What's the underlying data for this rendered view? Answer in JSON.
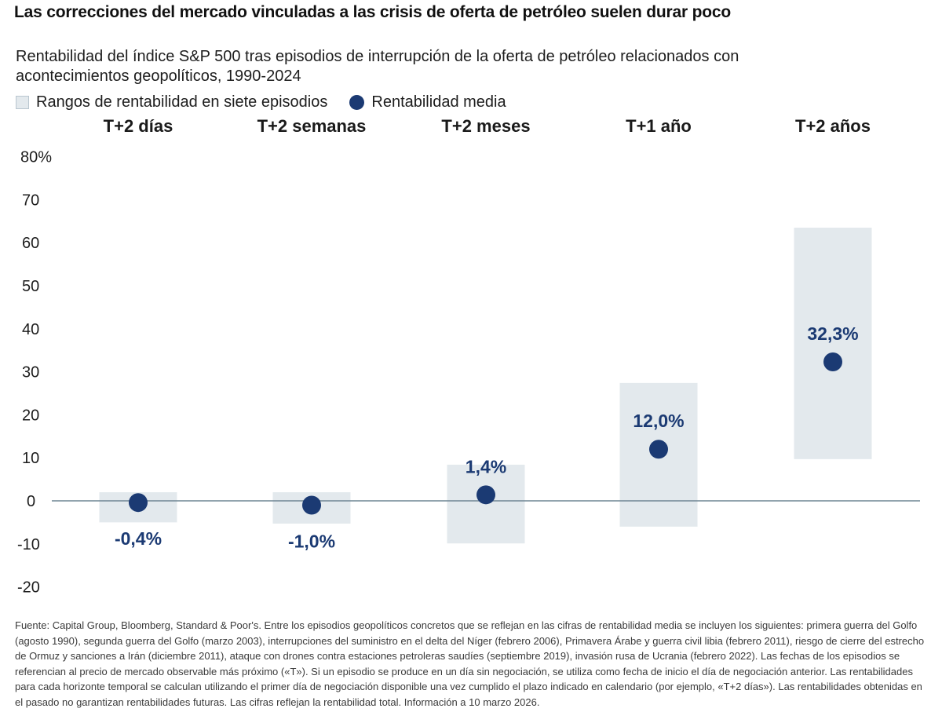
{
  "title": "Las correcciones del mercado vinculadas a las crisis de oferta de petróleo suelen durar poco",
  "subtitle": "Rentabilidad del índice S&P 500 tras episodios de interrupción de la oferta de petróleo relacionados con acontecimientos geopolíticos, 1990-2024",
  "legend": {
    "range_label": "Rangos de rentabilidad en siete episodios",
    "mean_label": "Rentabilidad media"
  },
  "colors": {
    "range_fill": "#e3e9ed",
    "mean_dot": "#1b3a73",
    "zero_line": "#6f8593"
  },
  "chart_data": {
    "type": "range-dot",
    "title": "Rentabilidad del índice S&P 500 tras episodios de interrupción de la oferta de petróleo relacionados con acontecimientos geopolíticos, 1990-2024",
    "xlabel": "",
    "ylabel": "",
    "ylim": [
      -20,
      80
    ],
    "yticks": [
      80,
      70,
      60,
      50,
      40,
      30,
      20,
      10,
      0,
      -10,
      -20
    ],
    "ytick_labels": [
      "80%",
      "70",
      "60",
      "50",
      "40",
      "30",
      "20",
      "10",
      "0",
      "-10",
      "-20"
    ],
    "grid": false,
    "legend_position": "top-left",
    "categories": [
      "T+2 días",
      "T+2 semanas",
      "T+2 meses",
      "T+1 año",
      "T+2 años"
    ],
    "series": [
      {
        "name": "Rangos de rentabilidad en siete episodios",
        "kind": "range",
        "low": [
          -5.0,
          -5.3,
          -9.9,
          -6.0,
          9.7
        ],
        "high": [
          2.0,
          2.0,
          8.4,
          27.4,
          63.5
        ]
      },
      {
        "name": "Rentabilidad media",
        "kind": "dot",
        "values": [
          -0.4,
          -1.0,
          1.4,
          12.0,
          32.3
        ],
        "labels": [
          "-0,4%",
          "-1,0%",
          "1,4%",
          "12,0%",
          "32,3%"
        ],
        "label_position": [
          "below",
          "below",
          "above",
          "above",
          "above"
        ]
      }
    ]
  },
  "footnote": "Fuente: Capital Group, Bloomberg, Standard & Poor's. Entre los episodios geopolíticos concretos que se reflejan en las cifras de rentabilidad media se incluyen los siguientes: primera guerra del Golfo (agosto 1990), segunda guerra del Golfo (marzo 2003), interrupciones del suministro en el delta del Níger (febrero 2006), Primavera Árabe y guerra civil libia (febrero 2011), riesgo de cierre del estrecho de Ormuz y sanciones a Irán (diciembre 2011), ataque con drones contra estaciones petroleras saudíes (septiembre 2019), invasión rusa de Ucrania (febrero 2022). Las fechas de los episodios se referencian al precio de mercado observable más próximo («T»). Si un episodio se produce en un día sin negociación, se utiliza como fecha de inicio el día de negociación anterior. Las rentabilidades para cada horizonte temporal se calculan utilizando el primer día de negociación disponible una vez cumplido el plazo indicado en calendario (por ejemplo, «T+2 días»). Las rentabilidades obtenidas en el pasado no garantizan rentabilidades futuras. Las cifras reflejan la rentabilidad total. Información a 10 marzo 2026."
}
